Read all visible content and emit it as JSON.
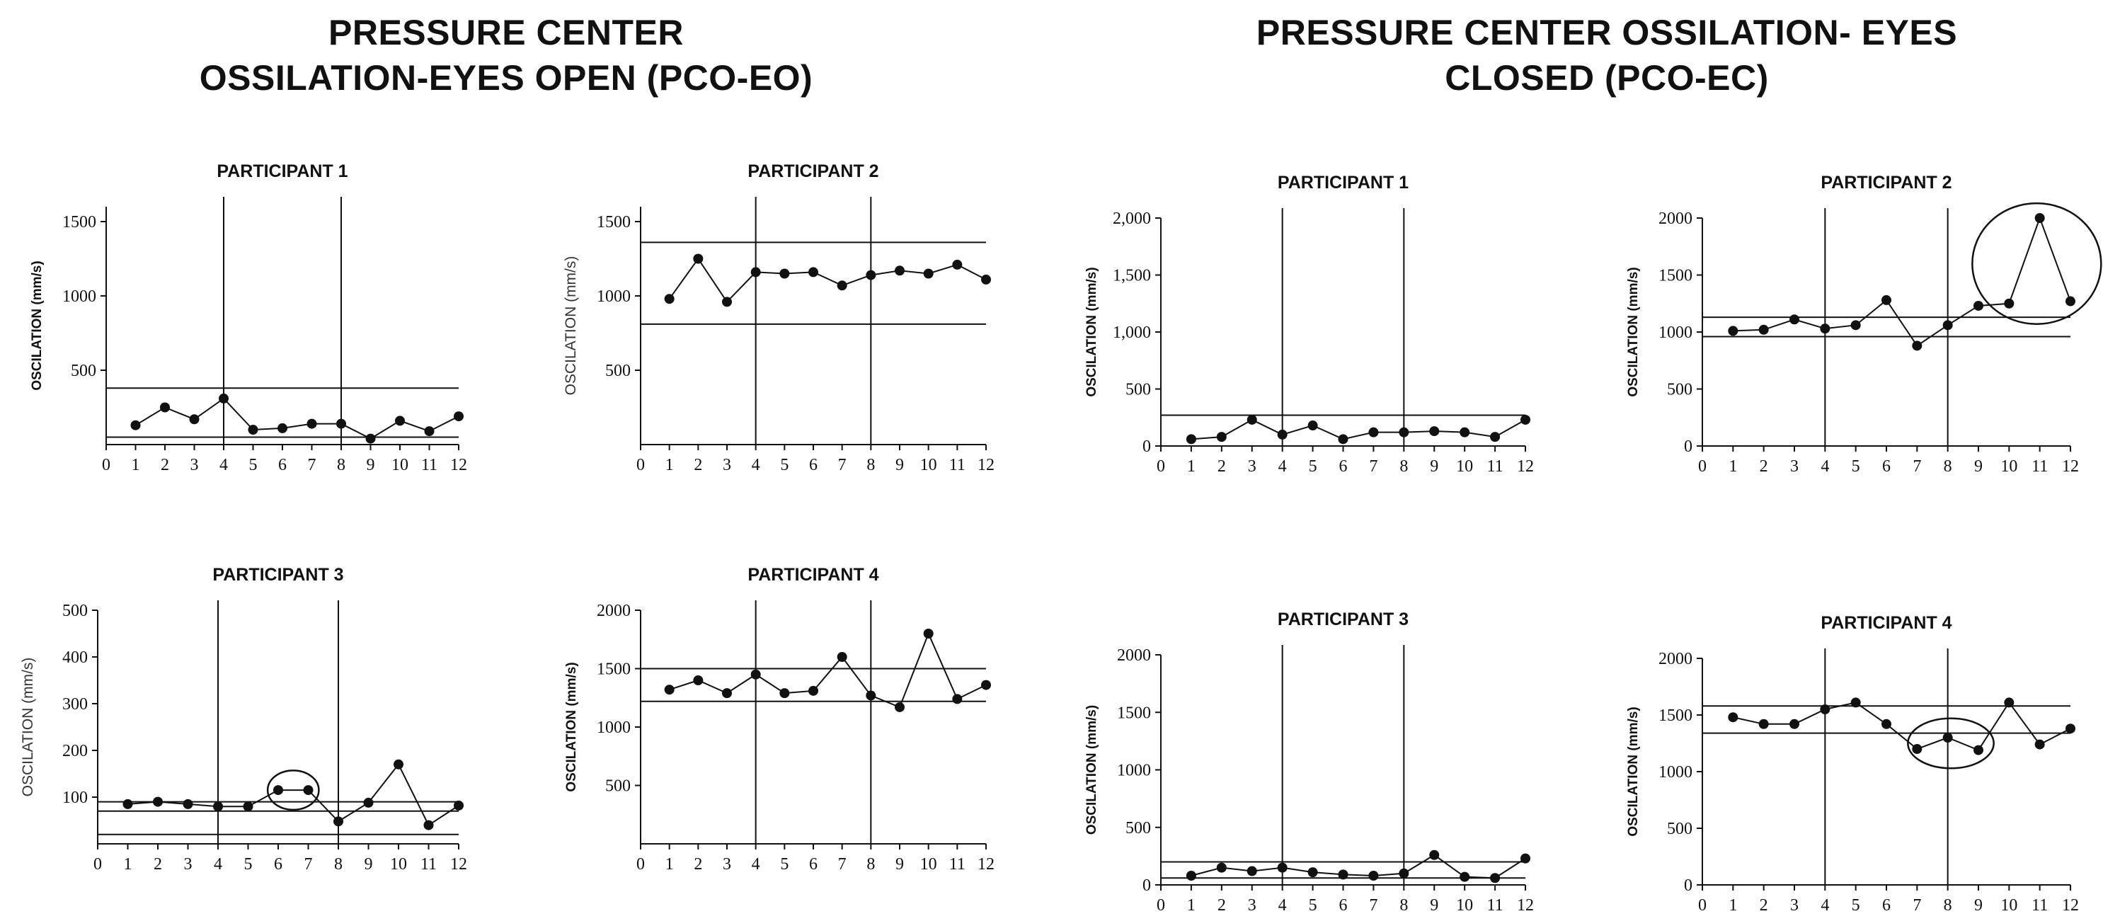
{
  "headings": {
    "eyes_open": [
      "PRESSURE CENTER",
      "OSSILATION-EYES OPEN (PCO-EO)"
    ],
    "eyes_closed": [
      "PRESSURE CENTER OSSILATION- EYES",
      "CLOSED (PCO-EC)"
    ]
  },
  "colors": {
    "ink": "#111111",
    "background": "#ffffff"
  },
  "chart_data": [
    {
      "type": "line",
      "group": "PCO-EO",
      "title": "PARTICIPANT 1",
      "ylabel": "OSCILATION (mm/s)",
      "ylim": [
        0,
        1600
      ],
      "yticks": [
        500,
        1000,
        1500
      ],
      "ytick_labels": [
        "500",
        "1000",
        "1500"
      ],
      "x": [
        1,
        2,
        3,
        4,
        5,
        6,
        7,
        8,
        9,
        10,
        11,
        12
      ],
      "xticks": [
        "0",
        "1",
        "2",
        "3",
        "4",
        "5",
        "6",
        "7",
        "8",
        "9",
        "10",
        "11",
        "12"
      ],
      "values": [
        130,
        250,
        170,
        310,
        100,
        110,
        140,
        140,
        40,
        160,
        90,
        190
      ],
      "band_lines": [
        380,
        50
      ],
      "phase_lines": [
        4,
        8
      ],
      "circles": []
    },
    {
      "type": "line",
      "group": "PCO-EO",
      "title": "PARTICIPANT 2",
      "ylabel": "OSCILATION (mm/s)",
      "ylim": [
        0,
        1600
      ],
      "yticks": [
        500,
        1000,
        1500
      ],
      "ytick_labels": [
        "500",
        "1000",
        "1500"
      ],
      "x": [
        1,
        2,
        3,
        4,
        5,
        6,
        7,
        8,
        9,
        10,
        11,
        12
      ],
      "xticks": [
        "0",
        "1",
        "2",
        "3",
        "4",
        "5",
        "6",
        "7",
        "8",
        "9",
        "10",
        "11",
        "12"
      ],
      "values": [
        980,
        1250,
        960,
        1160,
        1150,
        1160,
        1070,
        1140,
        1170,
        1150,
        1210,
        1110
      ],
      "band_lines": [
        1360,
        810
      ],
      "phase_lines": [
        4,
        8
      ],
      "circles": []
    },
    {
      "type": "line",
      "group": "PCO-EO",
      "title": "PARTICIPANT 3",
      "ylabel": "OSCILATION (mm/s)",
      "ylim": [
        0,
        500
      ],
      "yticks": [
        100,
        200,
        300,
        400,
        500
      ],
      "ytick_labels": [
        "100",
        "200",
        "300",
        "400",
        "500"
      ],
      "x": [
        1,
        2,
        3,
        4,
        5,
        6,
        7,
        8,
        9,
        10,
        11,
        12
      ],
      "xticks": [
        "0",
        "1",
        "2",
        "3",
        "4",
        "5",
        "6",
        "7",
        "8",
        "9",
        "10",
        "11",
        "12"
      ],
      "values": [
        85,
        90,
        85,
        80,
        80,
        115,
        115,
        48,
        88,
        170,
        40,
        82
      ],
      "band_lines": [
        90,
        70,
        20
      ],
      "phase_lines": [
        4,
        8
      ],
      "circles": [
        {
          "x": 6.5,
          "y": 115,
          "rx": 0.85,
          "ry": 42
        }
      ]
    },
    {
      "type": "line",
      "group": "PCO-EO",
      "title": "PARTICIPANT 4",
      "ylabel": "OSCILATION (mm/s)",
      "ylim": [
        0,
        2000
      ],
      "yticks": [
        500,
        1000,
        1500,
        2000
      ],
      "ytick_labels": [
        "500",
        "1000",
        "1500",
        "2000"
      ],
      "x": [
        1,
        2,
        3,
        4,
        5,
        6,
        7,
        8,
        9,
        10,
        11,
        12
      ],
      "xticks": [
        "0",
        "1",
        "2",
        "3",
        "4",
        "5",
        "6",
        "7",
        "8",
        "9",
        "10",
        "11",
        "12"
      ],
      "values": [
        1320,
        1400,
        1290,
        1450,
        1290,
        1310,
        1600,
        1270,
        1170,
        1800,
        1240,
        1360
      ],
      "band_lines": [
        1500,
        1220
      ],
      "phase_lines": [
        4,
        8
      ],
      "circles": []
    },
    {
      "type": "line",
      "group": "PCO-EC",
      "title": "PARTICIPANT 1",
      "ylabel": "OSCILATION (mm/s)",
      "ylim": [
        0,
        2000
      ],
      "yticks": [
        0,
        500,
        1000,
        1500,
        2000
      ],
      "ytick_labels": [
        "0",
        "500",
        "1,000",
        "1,500",
        "2,000"
      ],
      "x": [
        1,
        2,
        3,
        4,
        5,
        6,
        7,
        8,
        9,
        10,
        11,
        12
      ],
      "xticks": [
        "0",
        "1",
        "2",
        "3",
        "4",
        "5",
        "6",
        "7",
        "8",
        "9",
        "10",
        "11",
        "12"
      ],
      "values": [
        60,
        80,
        230,
        100,
        180,
        60,
        120,
        120,
        130,
        120,
        80,
        230
      ],
      "band_lines": [
        270
      ],
      "phase_lines": [
        4,
        8
      ],
      "circles": []
    },
    {
      "type": "line",
      "group": "PCO-EC",
      "title": "PARTICIPANT 2",
      "ylabel": "OSCILATION (mm/s)",
      "ylim": [
        0,
        2000
      ],
      "yticks": [
        0,
        500,
        1000,
        1500,
        2000
      ],
      "ytick_labels": [
        "0",
        "500",
        "1000",
        "1500",
        "2000"
      ],
      "x": [
        1,
        2,
        3,
        4,
        5,
        6,
        7,
        8,
        9,
        10,
        11,
        12
      ],
      "xticks": [
        "0",
        "1",
        "2",
        "3",
        "4",
        "5",
        "6",
        "7",
        "8",
        "9",
        "10",
        "11",
        "12"
      ],
      "values": [
        1010,
        1020,
        1110,
        1030,
        1060,
        1280,
        880,
        1060,
        1230,
        1250,
        2000,
        1270
      ],
      "band_lines": [
        1130,
        960
      ],
      "phase_lines": [
        4,
        8
      ],
      "circles": [
        {
          "x": 10.9,
          "y": 1600,
          "rx": 2.1,
          "ry": 530
        }
      ]
    },
    {
      "type": "line",
      "group": "PCO-EC",
      "title": "PARTICIPANT 3",
      "ylabel": "OSCILATION (mm/s)",
      "ylim": [
        0,
        2000
      ],
      "yticks": [
        0,
        500,
        1000,
        1500,
        2000
      ],
      "ytick_labels": [
        "0",
        "500",
        "1000",
        "1500",
        "2000"
      ],
      "x": [
        1,
        2,
        3,
        4,
        5,
        6,
        7,
        8,
        9,
        10,
        11,
        12
      ],
      "xticks": [
        "0",
        "1",
        "2",
        "3",
        "4",
        "5",
        "6",
        "7",
        "8",
        "9",
        "10",
        "11",
        "12"
      ],
      "values": [
        80,
        150,
        120,
        150,
        110,
        90,
        80,
        100,
        260,
        70,
        60,
        230
      ],
      "band_lines": [
        200,
        60
      ],
      "phase_lines": [
        4,
        8
      ],
      "circles": []
    },
    {
      "type": "line",
      "group": "PCO-EC",
      "title": "PARTICIPANT 4",
      "ylabel": "OSCILATION (mm/s)",
      "ylim": [
        0,
        2000
      ],
      "yticks": [
        0,
        500,
        1000,
        1500,
        2000
      ],
      "ytick_labels": [
        "0",
        "500",
        "1000",
        "1500",
        "2000"
      ],
      "x": [
        1,
        2,
        3,
        4,
        5,
        6,
        7,
        8,
        9,
        10,
        11,
        12
      ],
      "xticks": [
        "0",
        "1",
        "2",
        "3",
        "4",
        "5",
        "6",
        "7",
        "8",
        "9",
        "10",
        "11",
        "12"
      ],
      "values": [
        1480,
        1420,
        1420,
        1550,
        1610,
        1420,
        1200,
        1300,
        1190,
        1610,
        1240,
        1380
      ],
      "band_lines": [
        1580,
        1340
      ],
      "phase_lines": [
        4,
        8
      ],
      "circles": [
        {
          "x": 8.1,
          "y": 1250,
          "rx": 1.4,
          "ry": 220
        }
      ]
    }
  ]
}
